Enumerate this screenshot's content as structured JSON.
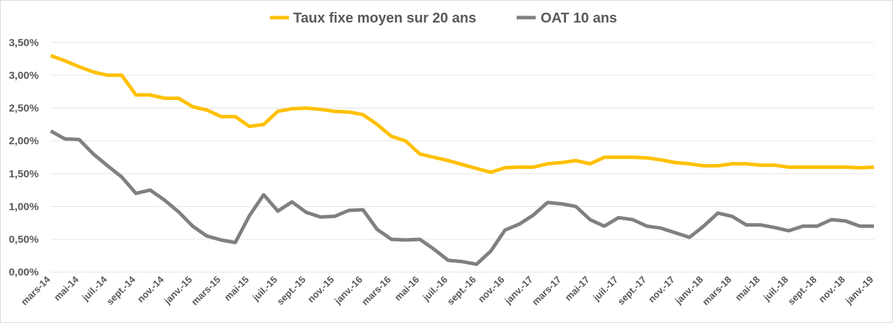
{
  "chart_data": {
    "type": "line",
    "title": "",
    "xlabel": "",
    "ylabel": "",
    "ylim": [
      0,
      3.5
    ],
    "y_ticks": [
      "0,00%",
      "0,50%",
      "1,00%",
      "1,50%",
      "2,00%",
      "2,50%",
      "3,00%",
      "3,50%"
    ],
    "y_tick_values": [
      0,
      0.5,
      1.0,
      1.5,
      2.0,
      2.5,
      3.0,
      3.5
    ],
    "grid": "horizontal",
    "legend_position": "top",
    "x_frequency": "monthly",
    "x_range": [
      "mars-14",
      "janv.-19"
    ],
    "x_tick_labels": [
      "mars-14",
      "mai-14",
      "juil.-14",
      "sept.-14",
      "nov.-14",
      "janv.-15",
      "mars-15",
      "mai-15",
      "juil.-15",
      "sept.-15",
      "nov.-15",
      "janv.-16",
      "mars-16",
      "mai-16",
      "juil.-16",
      "sept.-16",
      "nov.-16",
      "janv.-17",
      "mars-17",
      "mai-17",
      "juil.-17",
      "sept.-17",
      "nov.-17",
      "janv.-18",
      "mars-18",
      "mai-18",
      "juil.-18",
      "sept.-18",
      "nov.-18",
      "janv.-19"
    ],
    "series": [
      {
        "name": "Taux fixe moyen sur 20 ans",
        "color": "#FFC000",
        "values": [
          3.3,
          3.22,
          3.13,
          3.05,
          3.0,
          3.0,
          2.7,
          2.7,
          2.65,
          2.65,
          2.52,
          2.47,
          2.37,
          2.37,
          2.22,
          2.25,
          2.45,
          2.49,
          2.5,
          2.48,
          2.45,
          2.44,
          2.4,
          2.25,
          2.07,
          2.0,
          1.8,
          1.75,
          1.7,
          1.64,
          1.58,
          1.52,
          1.59,
          1.6,
          1.6,
          1.65,
          1.67,
          1.7,
          1.65,
          1.75,
          1.75,
          1.75,
          1.74,
          1.71,
          1.67,
          1.65,
          1.62,
          1.62,
          1.65,
          1.65,
          1.63,
          1.63,
          1.6,
          1.6,
          1.6,
          1.6,
          1.6,
          1.59,
          1.6
        ]
      },
      {
        "name": "OAT 10 ans",
        "color": "#808080",
        "values": [
          2.15,
          2.03,
          2.02,
          1.8,
          1.62,
          1.45,
          1.2,
          1.25,
          1.1,
          0.92,
          0.7,
          0.55,
          0.49,
          0.45,
          0.86,
          1.18,
          0.93,
          1.07,
          0.91,
          0.84,
          0.85,
          0.94,
          0.95,
          0.65,
          0.5,
          0.49,
          0.5,
          0.35,
          0.18,
          0.16,
          0.12,
          0.32,
          0.64,
          0.73,
          0.87,
          1.06,
          1.04,
          1.0,
          0.8,
          0.7,
          0.83,
          0.8,
          0.7,
          0.67,
          0.6,
          0.53,
          0.7,
          0.9,
          0.85,
          0.72,
          0.72,
          0.68,
          0.63,
          0.7,
          0.7,
          0.8,
          0.78,
          0.7,
          0.7
        ]
      }
    ]
  }
}
